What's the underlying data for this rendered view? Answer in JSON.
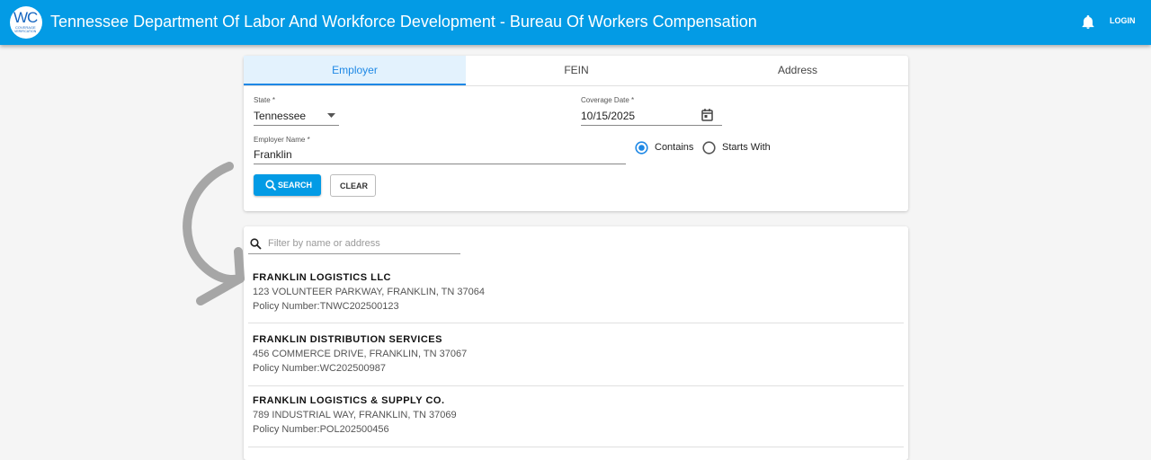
{
  "header": {
    "logo": {
      "mark": "WC",
      "line1": "COVERAGE",
      "line2": "VERIFICATION"
    },
    "title": "Tennessee Department Of Labor And Workforce Development - Bureau Of Workers Compensation",
    "login": "LOGIN"
  },
  "tabs": [
    "Employer",
    "FEIN",
    "Address"
  ],
  "form": {
    "state": {
      "label": "State *",
      "value": "Tennessee"
    },
    "coverage_date": {
      "label": "Coverage Date *",
      "value": "10/15/2025"
    },
    "employer_name": {
      "label": "Employer Name *",
      "value": "Franklin"
    },
    "match": [
      "Contains",
      "Starts With"
    ],
    "buttons": {
      "search": "SEARCH",
      "clear": "CLEAR"
    }
  },
  "results": {
    "filter_placeholder": "Filter by name or address",
    "items": [
      {
        "name": "FRANKLIN LOGISTICS LLC",
        "address": "123 VOLUNTEER PARKWAY, FRANKLIN, TN 37064",
        "policy": "Policy Number:TNWC202500123"
      },
      {
        "name": "FRANKLIN DISTRIBUTION SERVICES",
        "address": "456 COMMERCE DRIVE, FRANKLIN, TN 37067",
        "policy": "Policy Number:WC202500987"
      },
      {
        "name": "FRANKLIN LOGISTICS & SUPPLY CO.",
        "address": "789 INDUSTRIAL WAY, FRANKLIN, TN 37069",
        "policy": "Policy Number:POL202500456"
      }
    ]
  }
}
